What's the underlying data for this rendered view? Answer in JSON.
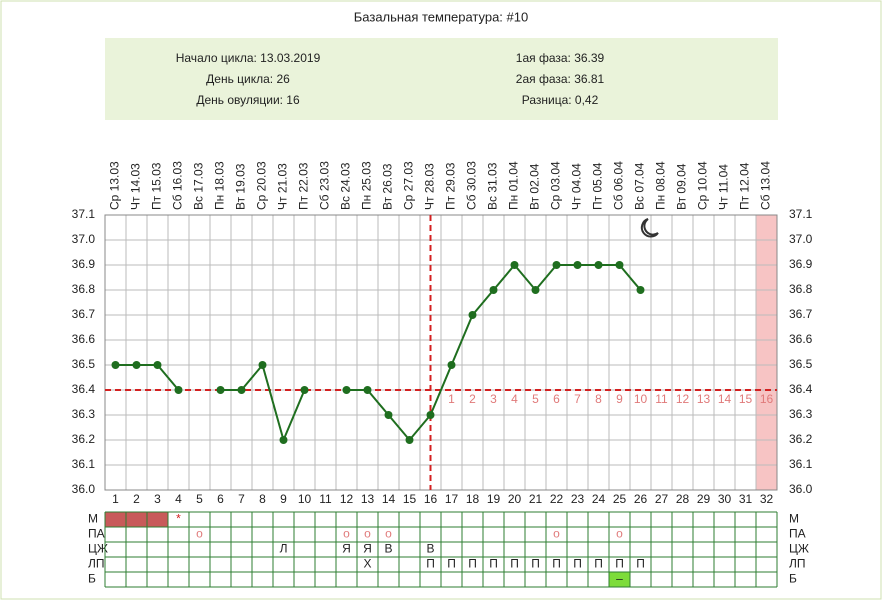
{
  "chart_data": {
    "type": "line",
    "title": "Базальная температура: #10",
    "info_left": [
      "Начало цикла: 13.03.2019",
      "День цикла: 26",
      "День овуляции: 16"
    ],
    "info_right": [
      "1ая фаза: 36.39",
      "2ая фаза: 36.81",
      "Разница: 0,42"
    ],
    "dates": [
      "Ср 13.03",
      "Чт 14.03",
      "Пт 15.03",
      "Сб 16.03",
      "Вс 17.03",
      "Пн 18.03",
      "Вт 19.03",
      "Ср 20.03",
      "Чт 21.03",
      "Пт 22.03",
      "Сб 23.03",
      "Вс 24.03",
      "Пн 25.03",
      "Вт 26.03",
      "Ср 27.03",
      "Чт 28.03",
      "Пт 29.03",
      "Сб 30.03",
      "Вс 31.03",
      "Пн 01.04",
      "Вт 02.04",
      "Ср 03.04",
      "Чт 04.04",
      "Пт 05.04",
      "Сб 06.04",
      "Вс 07.04",
      "Пн 08.04",
      "Вт 09.04",
      "Ср 10.04",
      "Чт 11.04",
      "Пт 12.04",
      "Сб 13.04"
    ],
    "categories": [
      1,
      2,
      3,
      4,
      5,
      6,
      7,
      8,
      9,
      10,
      11,
      12,
      13,
      14,
      15,
      16,
      17,
      18,
      19,
      20,
      21,
      22,
      23,
      24,
      25,
      26,
      27,
      28,
      29,
      30,
      31,
      32
    ],
    "series": [
      {
        "color": "#1f6e1f",
        "values": [
          36.5,
          36.5,
          36.5,
          36.4,
          null,
          36.4,
          36.4,
          36.5,
          36.2,
          36.4,
          null,
          36.4,
          36.4,
          36.3,
          36.2,
          36.3,
          36.5,
          36.7,
          36.8,
          36.9,
          36.8,
          36.9,
          36.9,
          36.9,
          36.9,
          36.8,
          null,
          null,
          null,
          null,
          null,
          null
        ]
      }
    ],
    "ylim": [
      36.0,
      37.1
    ],
    "yticks": [
      {
        "value": 36.0,
        "label": "36.0"
      },
      36.1,
      36.2,
      36.3,
      36.4,
      36.5,
      36.6,
      36.7,
      36.8,
      36.9,
      {
        "value": 37.0,
        "label": "37.0"
      },
      37.1
    ],
    "grid": true,
    "coverline": 36.4,
    "ovulation_day": 16,
    "marker_color": "#d42020",
    "phase2_day_labels": [
      1,
      2,
      3,
      4,
      5,
      6,
      7,
      8,
      9,
      10,
      11,
      12,
      13,
      14,
      15,
      16
    ],
    "highlight_day": 32,
    "highlight_color": "#f7c4c4",
    "table": [
      {
        "label": "М",
        "filled_days": [
          1,
          2,
          3
        ],
        "fill": "#c85a5a",
        "entries": [
          {
            "day": 4,
            "text": "*"
          }
        ]
      },
      {
        "label": "ПА",
        "entries": [
          {
            "day": 5,
            "text": "о"
          },
          {
            "day": 12,
            "text": "о"
          },
          {
            "day": 13,
            "text": "о"
          },
          {
            "day": 14,
            "text": "о"
          },
          {
            "day": 22,
            "text": "о"
          },
          {
            "day": 25,
            "text": "о"
          }
        ]
      },
      {
        "label": "ЦЖ",
        "entries": [
          {
            "day": 9,
            "text": "Л"
          },
          {
            "day": 12,
            "text": "Я"
          },
          {
            "day": 13,
            "text": "Я"
          },
          {
            "day": 14,
            "text": "В"
          },
          {
            "day": 16,
            "text": "В"
          }
        ]
      },
      {
        "label": "ЛП",
        "entries": [
          {
            "day": 13,
            "text": "Х"
          },
          {
            "day": 16,
            "text": "П"
          },
          {
            "day": 17,
            "text": "П"
          },
          {
            "day": 18,
            "text": "П"
          },
          {
            "day": 19,
            "text": "П"
          },
          {
            "day": 20,
            "text": "П"
          },
          {
            "day": 21,
            "text": "П"
          },
          {
            "day": 22,
            "text": "П"
          },
          {
            "day": 23,
            "text": "П"
          },
          {
            "day": 24,
            "text": "П"
          },
          {
            "day": 25,
            "text": "П"
          },
          {
            "day": 26,
            "text": "П"
          }
        ]
      },
      {
        "label": "Б",
        "filled_days": [
          25
        ],
        "fill": "#7ddc3a",
        "entries": [
          {
            "day": 25,
            "text": "–"
          }
        ]
      }
    ]
  }
}
